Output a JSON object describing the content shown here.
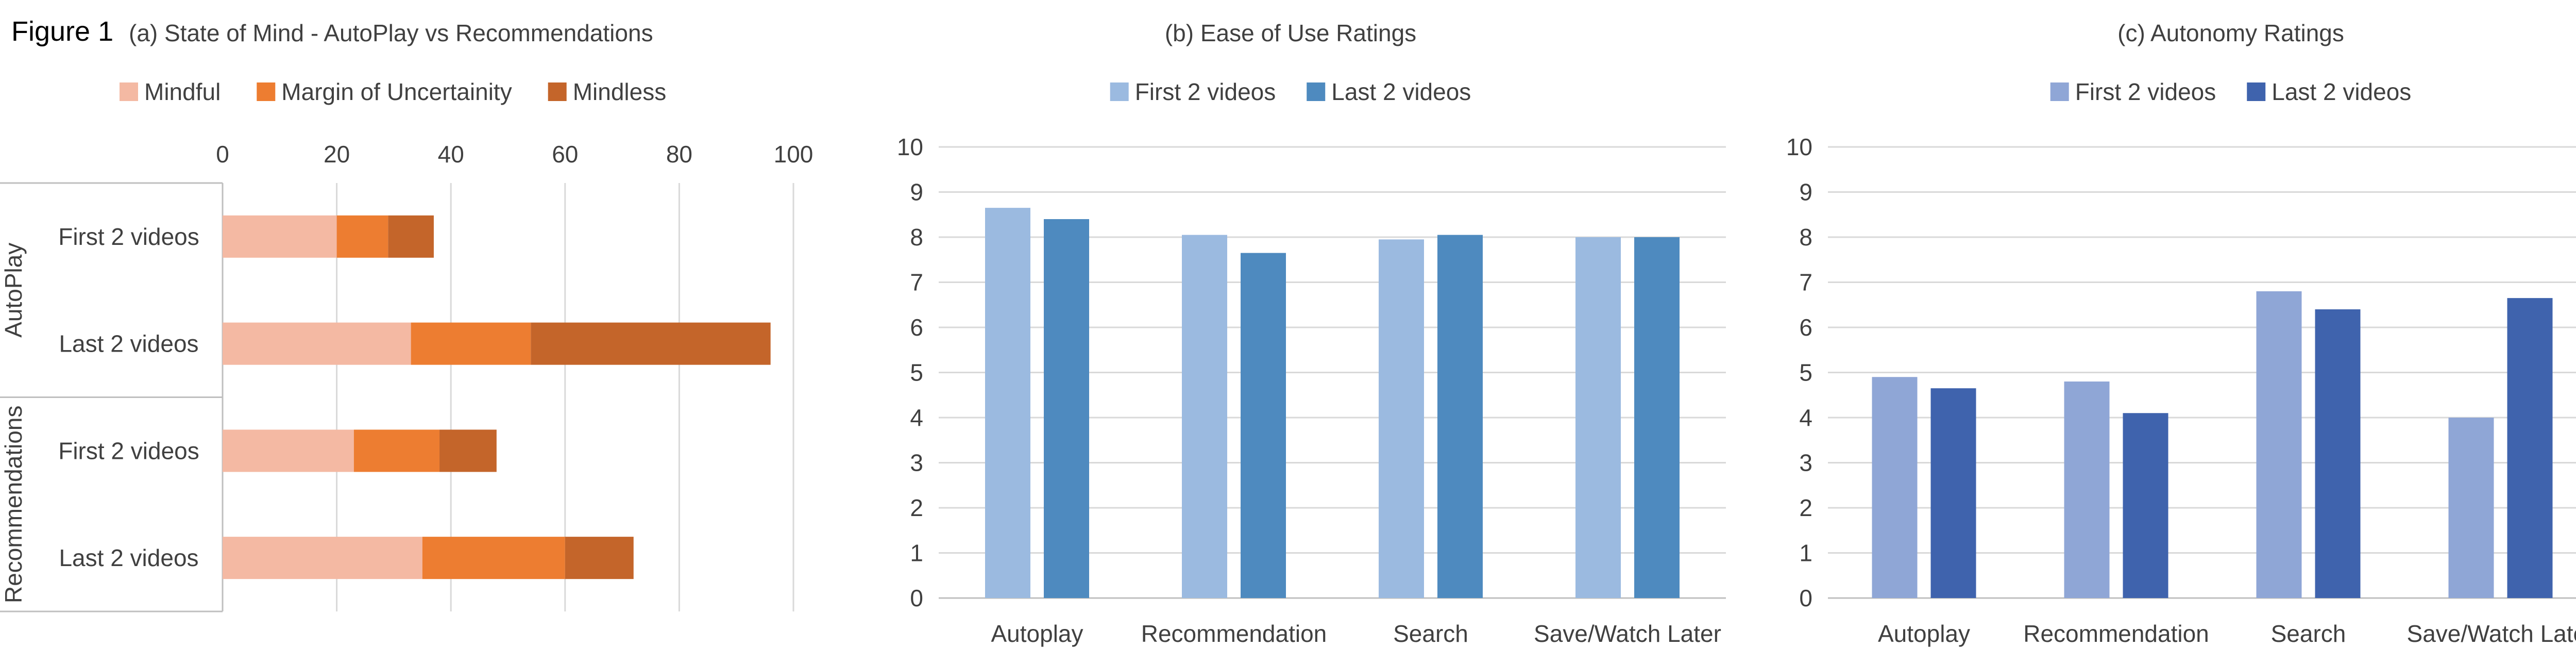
{
  "figure_label": "Figure 1",
  "chart_data": [
    {
      "type": "bar",
      "orientation": "horizontal",
      "stacked": true,
      "title": "(a) State of Mind - AutoPlay vs Recommendations",
      "groups": [
        {
          "label": "AutoPlay",
          "categories": [
            "First 2 videos",
            "Last 2 videos"
          ]
        },
        {
          "label": "Recommendations",
          "categories": [
            "First 2 videos",
            "Last 2 videos"
          ]
        }
      ],
      "categories": [
        "First 2 videos",
        "Last 2 videos",
        "First 2 videos",
        "Last 2 videos"
      ],
      "series": [
        {
          "name": "Mindful",
          "color": "#F4B9A3",
          "values": [
            20,
            33,
            23,
            35
          ]
        },
        {
          "name": "Margin of Uncertainity",
          "color": "#ED7D31",
          "values": [
            9,
            21,
            15,
            25
          ]
        },
        {
          "name": "Mindless",
          "color": "#C4652A",
          "values": [
            8,
            42,
            10,
            12
          ]
        }
      ],
      "xlim": [
        0,
        100
      ],
      "xticks": [
        "0",
        "20",
        "40",
        "60",
        "80",
        "100"
      ],
      "grid": true,
      "legend": "top"
    },
    {
      "type": "bar",
      "title": "(b) Ease of Use Ratings",
      "categories": [
        "Autoplay",
        "Recommendation",
        "Search",
        "Save/Watch Later"
      ],
      "series": [
        {
          "name": "First 2 videos",
          "color": "#9BBAE0",
          "values": [
            8.65,
            8.05,
            7.95,
            8.0
          ]
        },
        {
          "name": "Last 2 videos",
          "color": "#4E8ABF",
          "values": [
            8.4,
            7.65,
            8.05,
            8.0
          ]
        }
      ],
      "ylim": [
        0,
        10
      ],
      "yticks": [
        "0",
        "1",
        "2",
        "3",
        "4",
        "5",
        "6",
        "7",
        "8",
        "9",
        "10"
      ],
      "grid": true,
      "legend": "top"
    },
    {
      "type": "bar",
      "title": "(c) Autonomy Ratings",
      "categories": [
        "Autoplay",
        "Recommendation",
        "Search",
        "Save/Watch Later"
      ],
      "series": [
        {
          "name": "First 2 videos",
          "color": "#8FA6D6",
          "values": [
            4.9,
            4.8,
            6.8,
            4.0
          ]
        },
        {
          "name": "Last 2 videos",
          "color": "#3F63AD",
          "values": [
            4.65,
            4.1,
            6.4,
            6.65
          ]
        }
      ],
      "ylim": [
        0,
        10
      ],
      "yticks": [
        "0",
        "1",
        "2",
        "3",
        "4",
        "5",
        "6",
        "7",
        "8",
        "9",
        "10"
      ],
      "grid": true,
      "legend": "top"
    }
  ]
}
